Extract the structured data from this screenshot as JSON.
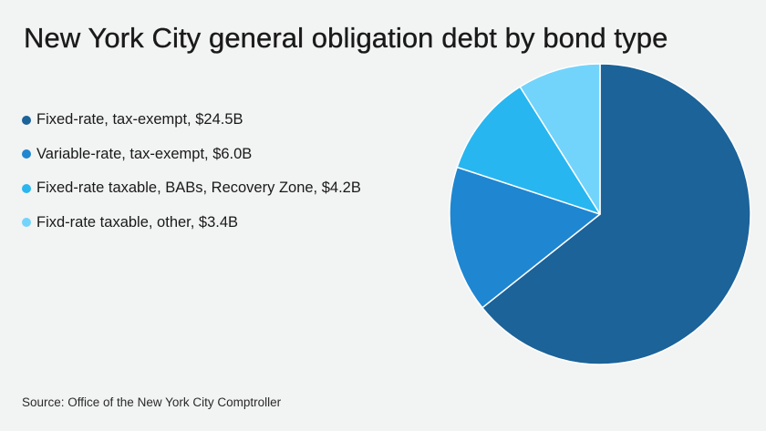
{
  "chart_data": {
    "type": "pie",
    "title": "New York City general obligation debt by bond type",
    "slices": [
      {
        "label": "Fixed-rate, tax-exempt, $24.5B",
        "value": 24.5,
        "color": "#1b6399"
      },
      {
        "label": "Variable-rate, tax-exempt, $6.0B",
        "value": 6.0,
        "color": "#1f86d1"
      },
      {
        "label": "Fixed-rate taxable, BABs, Recovery Zone, $4.2B",
        "value": 4.2,
        "color": "#27b6f0"
      },
      {
        "label": "Fixd-rate taxable, other, $3.4B",
        "value": 3.4,
        "color": "#72d4fb"
      }
    ],
    "start_angle": "12 o'clock",
    "direction": "clockwise",
    "legend_position": "left",
    "slice_border_color": "#ffffff"
  },
  "source": "Source: Office of the New York City Comptroller",
  "background_color": "#f2f3f3"
}
